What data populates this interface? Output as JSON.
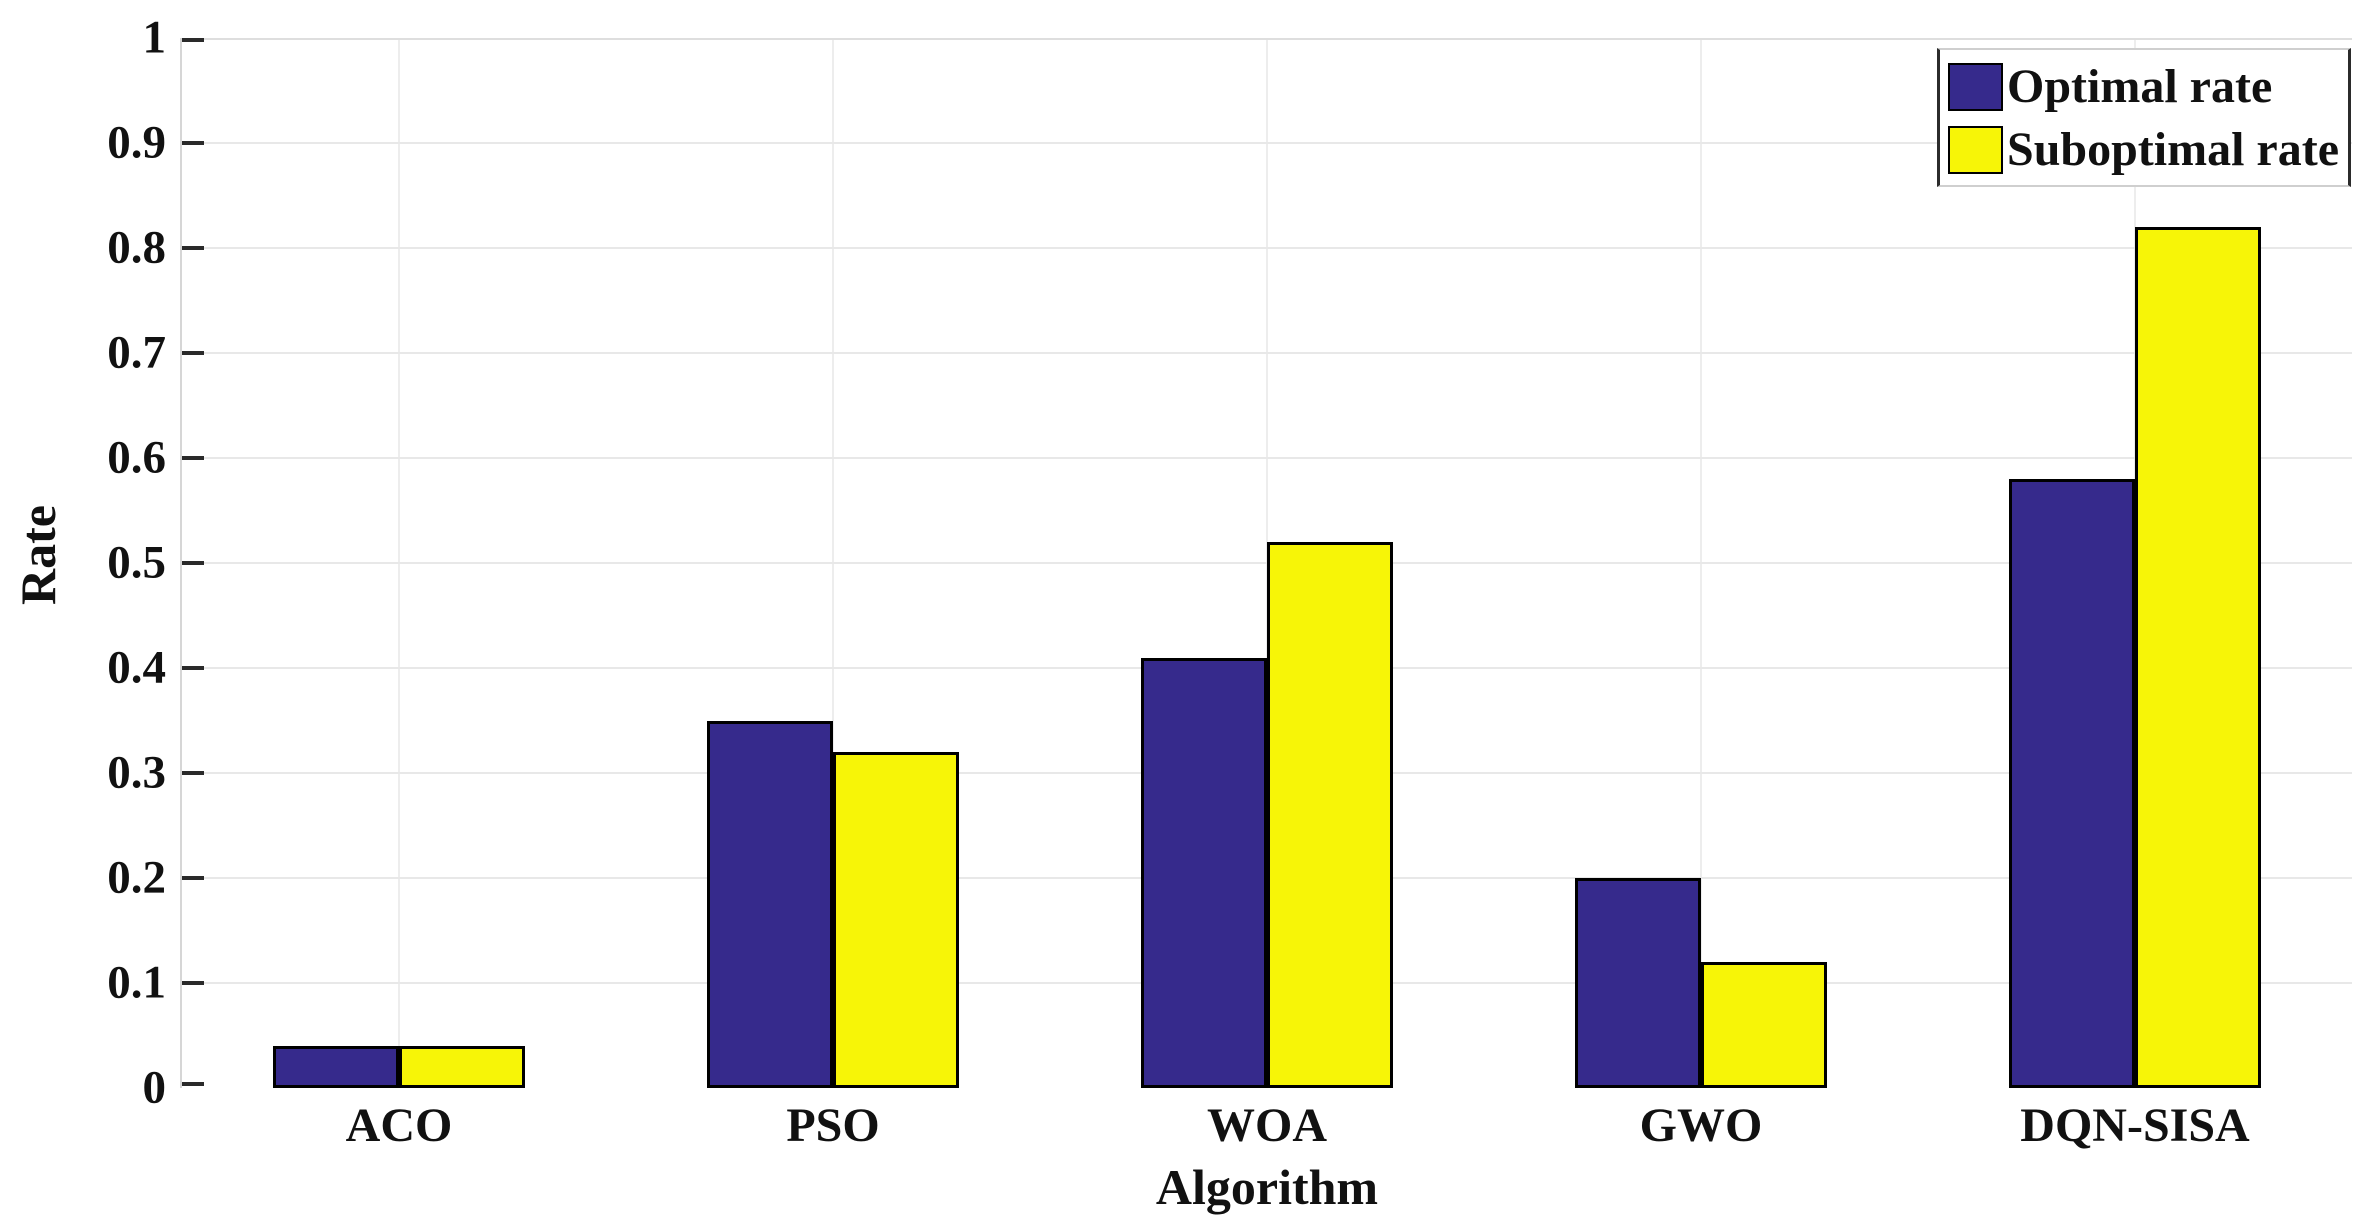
{
  "chart_data": {
    "type": "bar",
    "title": "",
    "xlabel": "Algorithm",
    "ylabel": "Rate",
    "categories": [
      "ACO",
      "PSO",
      "WOA",
      "GWO",
      "DQN-SISA"
    ],
    "series": [
      {
        "name": "Optimal rate",
        "color": "#362A8C",
        "values": [
          0.04,
          0.35,
          0.41,
          0.2,
          0.58
        ]
      },
      {
        "name": "Suboptimal rate",
        "color": "#F7F507",
        "values": [
          0.04,
          0.32,
          0.52,
          0.12,
          0.82
        ]
      }
    ],
    "ylim": [
      0,
      1
    ],
    "yticks": [
      0,
      0.1,
      0.2,
      0.3,
      0.4,
      0.5,
      0.6,
      0.7,
      0.8,
      0.9,
      1
    ],
    "ytick_labels": [
      "0",
      "0.1",
      "0.2",
      "0.3",
      "0.4",
      "0.5",
      "0.6",
      "0.7",
      "0.8",
      "0.9",
      "1"
    ],
    "grid": true,
    "bar_edge_color": "#000000",
    "legend": {
      "position": "top-right",
      "entries": [
        "Optimal rate",
        "Suboptimal rate"
      ]
    }
  }
}
